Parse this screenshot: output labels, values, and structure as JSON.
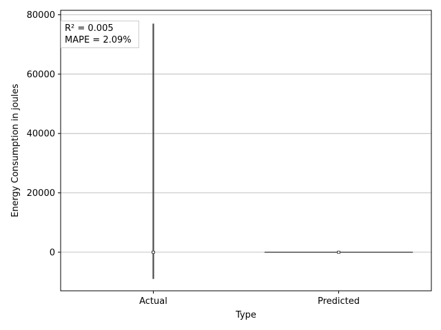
{
  "chart_data": {
    "type": "violin",
    "xlabel": "Type",
    "ylabel": "Energy Consumption in joules",
    "categories": [
      "Actual",
      "Predicted"
    ],
    "ylim": [
      -13000,
      81500
    ],
    "yticks": [
      0,
      20000,
      40000,
      60000,
      80000
    ],
    "ytick_labels": [
      "0",
      "20000",
      "40000",
      "60000",
      "80000"
    ],
    "grid": "y",
    "annotation": {
      "line1": "R² = 0.005",
      "line2": "MAPE = 2.09%",
      "placement": "top-left"
    },
    "series": [
      {
        "category": "Actual",
        "min": -9000,
        "max": 77000,
        "q1": -300,
        "q3": 300,
        "median": 0,
        "spread": 0.01
      },
      {
        "category": "Predicted",
        "min": -50,
        "max": 50,
        "q1": -20,
        "q3": 20,
        "median": 0,
        "spread": 1.0
      }
    ]
  },
  "colors": {
    "violin": "#4a4a4a",
    "grid": "#b0b0b0",
    "axis": "#000000"
  }
}
